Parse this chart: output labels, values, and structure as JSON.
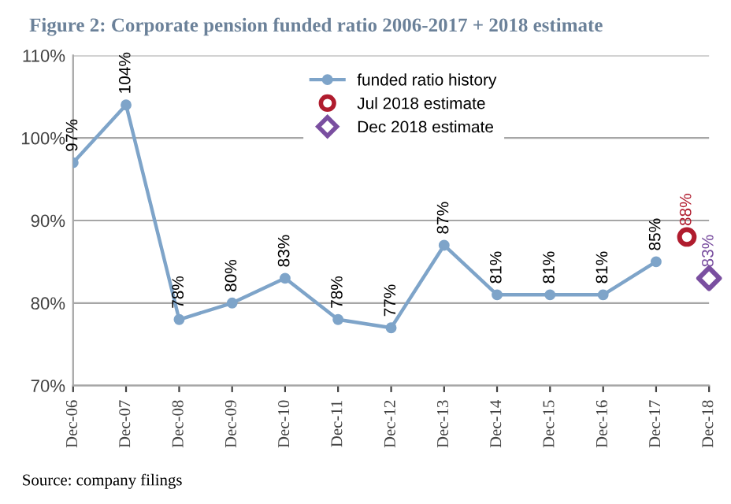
{
  "chart_data": {
    "type": "line",
    "title": "Figure 2: Corporate pension funded ratio 2006-2017 + 2018 estimate",
    "series": [
      {
        "name": "funded ratio history",
        "color": "#7ea4c9",
        "marker": "circle",
        "x": [
          "2006-12",
          "2007-12",
          "2008-12",
          "2009-12",
          "2010-12",
          "2011-12",
          "2012-12",
          "2013-12",
          "2014-12",
          "2015-12",
          "2016-12",
          "2017-12"
        ],
        "values": [
          97,
          104,
          78,
          80,
          83,
          78,
          77,
          87,
          81,
          81,
          81,
          85
        ],
        "value_labels": [
          "97%",
          "104%",
          "78%",
          "80%",
          "83%",
          "78%",
          "77%",
          "87%",
          "81%",
          "81%",
          "81%",
          "85%"
        ]
      },
      {
        "name": "Jul 2018 estimate",
        "type": "scatter",
        "color": "#b01c2e",
        "marker": "circle",
        "x": [
          "2018-07"
        ],
        "values": [
          88
        ],
        "value_labels": [
          "88%"
        ]
      },
      {
        "name": "Dec 2018 estimate",
        "type": "scatter",
        "color": "#7a4fa0",
        "marker": "diamond",
        "x": [
          "2018-12"
        ],
        "values": [
          83
        ],
        "value_labels": [
          "83%"
        ]
      }
    ],
    "xlim": [
      "2006-12",
      "2018-12"
    ],
    "xticks": [
      {
        "value": "2006-12",
        "label": "Dec-06"
      },
      {
        "value": "2007-12",
        "label": "Dec-07"
      },
      {
        "value": "2008-12",
        "label": "Dec-08"
      },
      {
        "value": "2009-12",
        "label": "Dec-09"
      },
      {
        "value": "2010-12",
        "label": "Dec-10"
      },
      {
        "value": "2011-12",
        "label": "Dec-11"
      },
      {
        "value": "2012-12",
        "label": "Dec-12"
      },
      {
        "value": "2013-12",
        "label": "Dec-13"
      },
      {
        "value": "2014-12",
        "label": "Dec-14"
      },
      {
        "value": "2015-12",
        "label": "Dec-15"
      },
      {
        "value": "2016-12",
        "label": "Dec-16"
      },
      {
        "value": "2017-12",
        "label": "Dec-17"
      },
      {
        "value": "2018-12",
        "label": "Dec-18"
      }
    ],
    "ylim": [
      70,
      110
    ],
    "yticks": [
      {
        "value": 70,
        "label": "70%"
      },
      {
        "value": 80,
        "label": "80%"
      },
      {
        "value": 90,
        "label": "90%"
      },
      {
        "value": 100,
        "label": "100%"
      },
      {
        "value": 110,
        "label": "110%"
      }
    ],
    "grid": "y",
    "legend": "top",
    "annotations": [
      "Source: company filings"
    ]
  }
}
